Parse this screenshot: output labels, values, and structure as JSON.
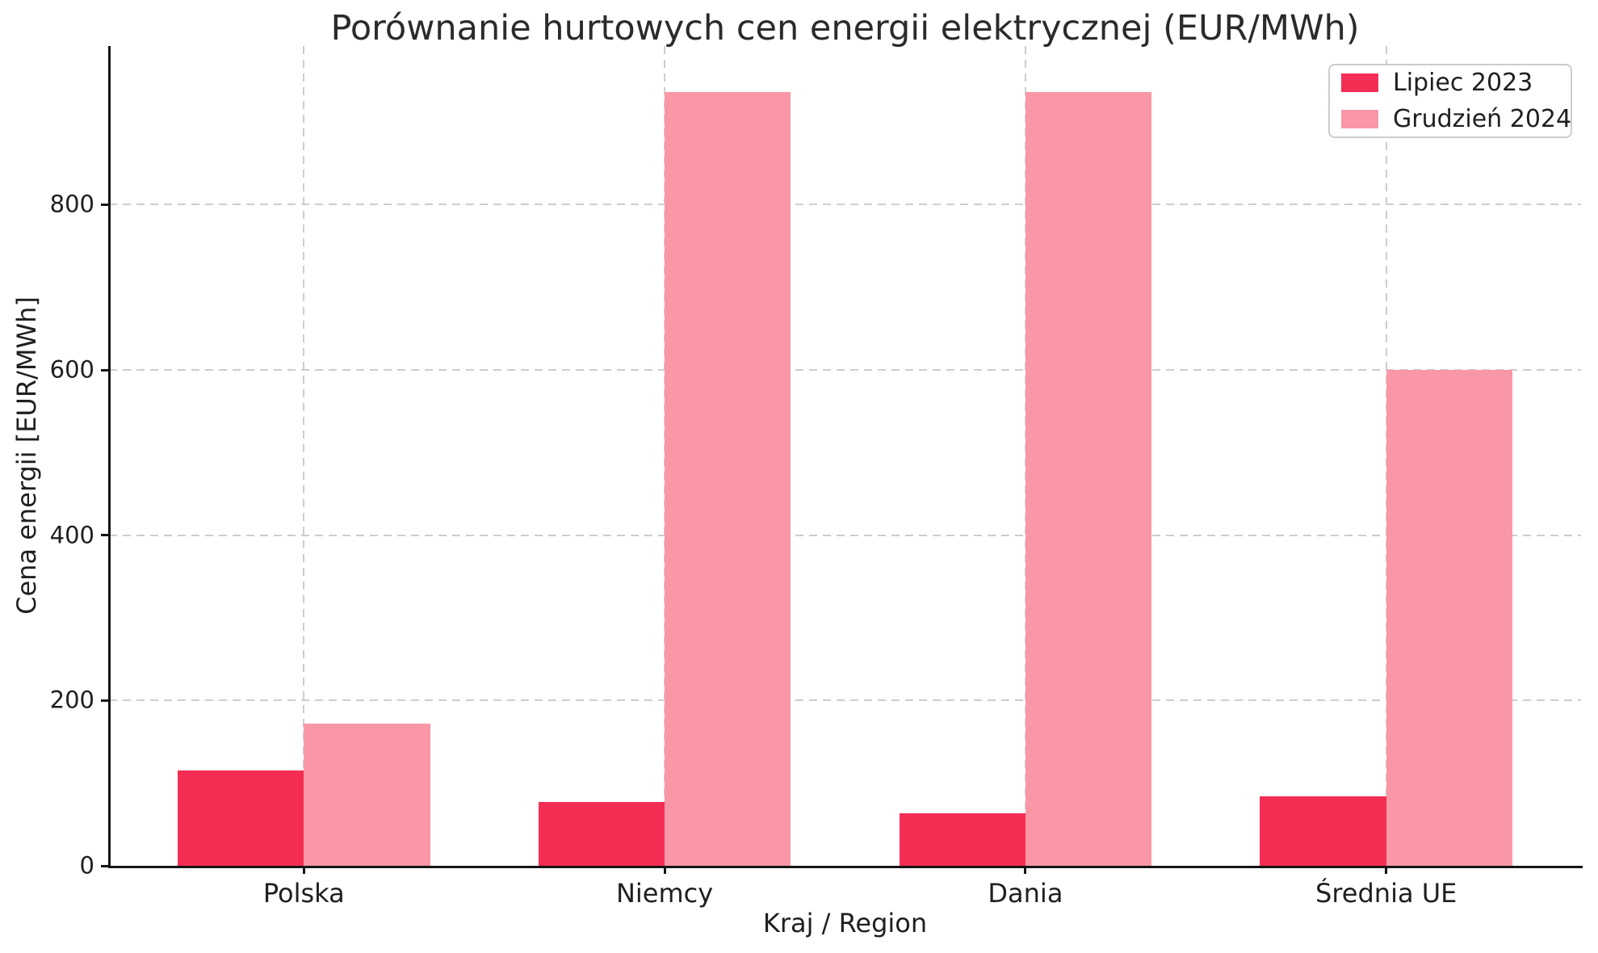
{
  "chart_data": {
    "type": "bar",
    "title": "Porównanie hurtowych cen energii elektrycznej (EUR/MWh)",
    "xlabel": "Kraj / Region",
    "ylabel": "Cena energii [EUR/MWh]",
    "categories": [
      "Polska",
      "Niemcy",
      "Dania",
      "Średnia UE"
    ],
    "series": [
      {
        "name": "Lipiec 2023",
        "color": "#F42D55",
        "values": [
          115,
          77,
          64,
          84
        ]
      },
      {
        "name": "Grudzień 2024",
        "color": "#F997A6",
        "values": [
          172,
          936,
          936,
          600
        ]
      }
    ],
    "yticks": [
      0,
      200,
      400,
      600,
      800
    ],
    "ylim": [
      0,
      992
    ],
    "bar_width": 0.35,
    "grid": true,
    "grid_style": "dashed",
    "grid_color": "#cdcdcd",
    "legend_position": "upper right",
    "background_color": "#ffffff",
    "spine_color": "#151515",
    "text_color": "#1f1f1f"
  }
}
